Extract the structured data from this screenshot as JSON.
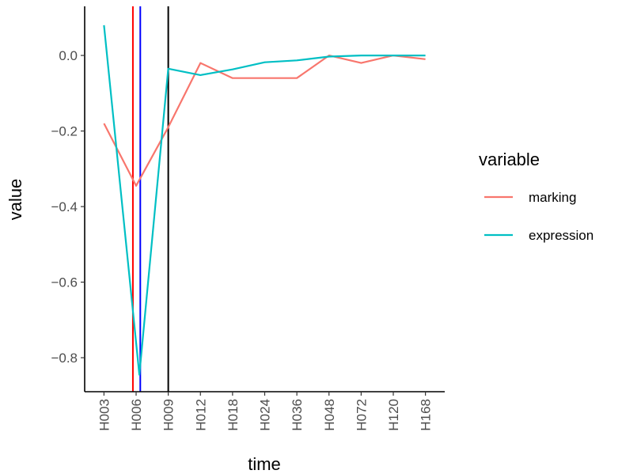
{
  "chart_data": {
    "type": "line",
    "title": "",
    "xlabel": "time",
    "ylabel": "value",
    "categories": [
      "H003",
      "H006",
      "H009",
      "H012",
      "H018",
      "H024",
      "H036",
      "H048",
      "H072",
      "H120",
      "H168"
    ],
    "ylim": [
      -0.89,
      0.13
    ],
    "yticks": [
      0.0,
      -0.2,
      -0.4,
      -0.6,
      -0.8
    ],
    "ytick_labels": [
      "0.0",
      "−0.2",
      "−0.4",
      "−0.6",
      "−0.8"
    ],
    "grid": false,
    "legend": {
      "title": "variable",
      "position": "right"
    },
    "series": [
      {
        "name": "marking",
        "color": "#F8766D",
        "x": [
          1,
          2,
          3,
          4,
          5,
          6,
          7,
          8,
          9,
          10,
          11
        ],
        "y": [
          -0.18,
          -0.345,
          -0.19,
          -0.02,
          -0.06,
          -0.06,
          -0.06,
          0.0,
          -0.02,
          0.0,
          -0.01
        ]
      },
      {
        "name": "expression",
        "color": "#00BFC4",
        "x": [
          1,
          2.1,
          3,
          4,
          5,
          6,
          7,
          8,
          9,
          10,
          11
        ],
        "y": [
          0.08,
          -0.845,
          -0.035,
          -0.052,
          -0.037,
          -0.018,
          -0.013,
          -0.003,
          0.0,
          0.0,
          0.0
        ]
      }
    ],
    "vlines": [
      {
        "x": 1.9,
        "color": "#FF0000"
      },
      {
        "x": 2.13,
        "color": "#0000FF"
      },
      {
        "x": 3.0,
        "color": "#000000"
      }
    ]
  }
}
